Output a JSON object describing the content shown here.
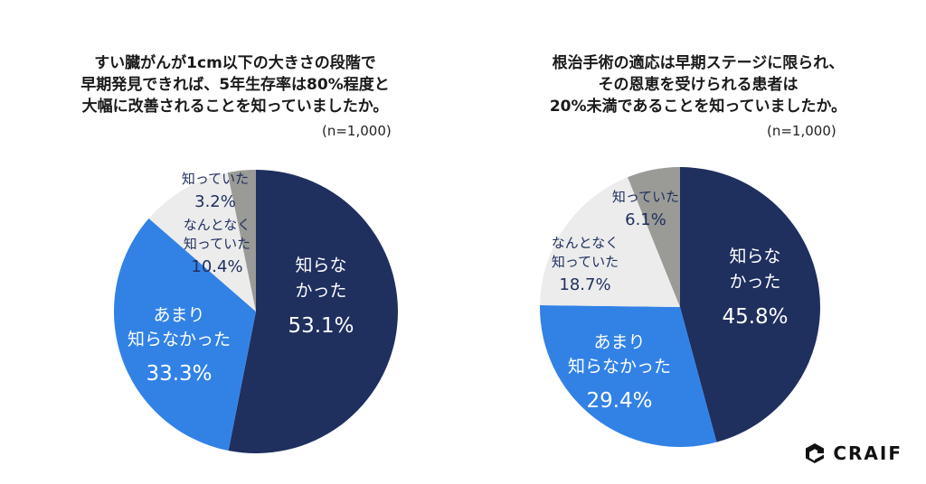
{
  "chart_data": [
    {
      "type": "pie",
      "title_lines": [
        "すい臓がんが1cm以下の大きさの段階で",
        "早期発見できれば、5年生存率は80%程度と",
        "大幅に改善されることを知っていましたか。"
      ],
      "note": "(n=1,000)",
      "slices": [
        {
          "label_lines": [
            "知らな",
            "かった"
          ],
          "pct_text": "53.1%",
          "value": 53.1,
          "color": "#1f2f5e",
          "text_color": "#ffffff"
        },
        {
          "label_lines": [
            "あまり",
            "知らなかった"
          ],
          "pct_text": "33.3%",
          "value": 33.3,
          "color": "#3282e6",
          "text_color": "#ffffff"
        },
        {
          "label_lines": [
            "なんとなく",
            "知っていた"
          ],
          "pct_text": "10.4%",
          "value": 10.4,
          "color": "#ececec",
          "text_color": "#1f2f5e"
        },
        {
          "label_lines": [
            "知っていた"
          ],
          "pct_text": "3.2%",
          "value": 3.2,
          "color": "#9a9a96",
          "text_color": "#1f2f5e"
        }
      ]
    },
    {
      "type": "pie",
      "title_lines": [
        "根治手術の適応は早期ステージに限られ、",
        "その恩恵を受けられる患者は",
        "20%未満であることを知っていましたか。"
      ],
      "note": "(n=1,000)",
      "slices": [
        {
          "label_lines": [
            "知らな",
            "かった"
          ],
          "pct_text": "45.8%",
          "value": 45.8,
          "color": "#1f2f5e",
          "text_color": "#ffffff"
        },
        {
          "label_lines": [
            "あまり",
            "知らなかった"
          ],
          "pct_text": "29.4%",
          "value": 29.4,
          "color": "#3282e6",
          "text_color": "#ffffff"
        },
        {
          "label_lines": [
            "なんとなく",
            "知っていた"
          ],
          "pct_text": "18.7%",
          "value": 18.7,
          "color": "#ececec",
          "text_color": "#1f2f5e"
        },
        {
          "label_lines": [
            "知っていた"
          ],
          "pct_text": "6.1%",
          "value": 6.1,
          "color": "#9a9a96",
          "text_color": "#1f2f5e"
        }
      ]
    }
  ],
  "logo": {
    "text": "CRAIF",
    "icon": "craif-logo-icon"
  }
}
